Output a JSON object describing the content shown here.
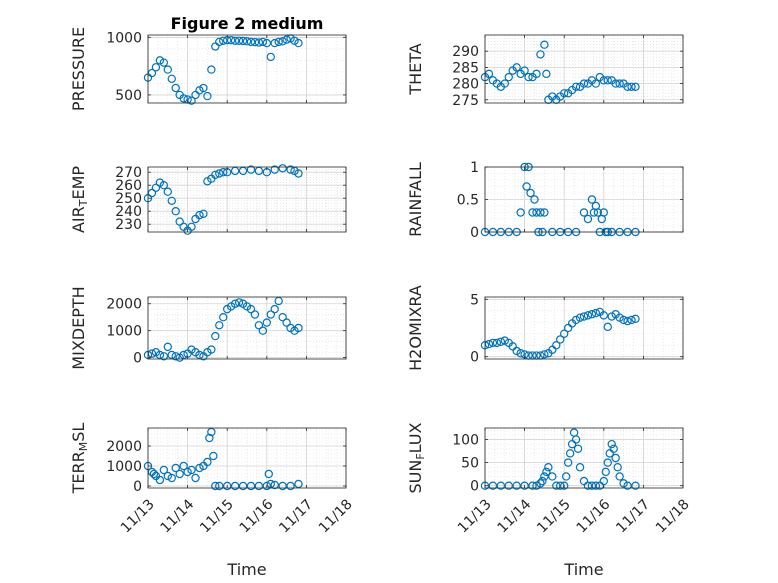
{
  "figure": {
    "title": "Figure 2 medium",
    "xlabel_left": "Time",
    "xlabel_right": "Time",
    "marker_color": "#0072BD",
    "x_ticks": [
      "11/13",
      "11/14",
      "11/15",
      "11/16",
      "11/17",
      "11/18"
    ]
  },
  "chart_data": [
    {
      "type": "scatter",
      "ylabel": "PRESSURE",
      "ylim": [
        430,
        1020
      ],
      "yticks": [
        500,
        1000
      ],
      "x": [
        0,
        0.1,
        0.2,
        0.3,
        0.4,
        0.5,
        0.6,
        0.7,
        0.8,
        0.9,
        1.0,
        1.1,
        1.2,
        1.3,
        1.4,
        1.5,
        1.6,
        1.7,
        1.8,
        1.9,
        2.0,
        2.1,
        2.2,
        2.3,
        2.4,
        2.5,
        2.6,
        2.7,
        2.8,
        2.9,
        3.0,
        3.1,
        3.2,
        3.3,
        3.4,
        3.5,
        3.6,
        3.7,
        3.8
      ],
      "y": [
        650,
        690,
        740,
        800,
        780,
        720,
        640,
        560,
        500,
        470,
        460,
        450,
        500,
        540,
        560,
        490,
        720,
        920,
        960,
        970,
        975,
        975,
        970,
        970,
        968,
        965,
        960,
        958,
        955,
        960,
        950,
        830,
        950,
        960,
        965,
        980,
        990,
        970,
        950
      ]
    },
    {
      "type": "scatter",
      "ylabel": "THETA",
      "ylim": [
        274,
        295
      ],
      "yticks": [
        275,
        280,
        285,
        290
      ],
      "x": [
        0,
        0.1,
        0.2,
        0.3,
        0.4,
        0.5,
        0.6,
        0.7,
        0.8,
        0.9,
        1.0,
        1.1,
        1.2,
        1.3,
        1.4,
        1.5,
        1.55,
        1.6,
        1.7,
        1.8,
        1.9,
        2.0,
        2.1,
        2.2,
        2.3,
        2.4,
        2.5,
        2.6,
        2.7,
        2.8,
        2.9,
        3.0,
        3.1,
        3.2,
        3.3,
        3.4,
        3.5,
        3.6,
        3.7,
        3.8
      ],
      "y": [
        282,
        283,
        281,
        280,
        279,
        280,
        282,
        284,
        285,
        283,
        284,
        282,
        282,
        283,
        289,
        292,
        283,
        275,
        276,
        275,
        276,
        277,
        277,
        278,
        279,
        279,
        280,
        280,
        281,
        280,
        282,
        281,
        281,
        281,
        280,
        280,
        280,
        279,
        279,
        279
      ]
    },
    {
      "type": "scatter",
      "ylabel": "AIR_TEMP",
      "ylim": [
        224,
        274
      ],
      "yticks": [
        230,
        240,
        250,
        260,
        270
      ],
      "x": [
        0,
        0.1,
        0.2,
        0.3,
        0.4,
        0.5,
        0.6,
        0.7,
        0.8,
        0.9,
        1.0,
        1.1,
        1.2,
        1.3,
        1.4,
        1.5,
        1.6,
        1.7,
        1.8,
        1.9,
        2.0,
        2.2,
        2.4,
        2.6,
        2.8,
        3.0,
        3.2,
        3.4,
        3.6,
        3.7,
        3.8
      ],
      "y": [
        250,
        254,
        258,
        262,
        260,
        255,
        248,
        240,
        232,
        228,
        225,
        228,
        234,
        237,
        238,
        263,
        265,
        268,
        269,
        270,
        270,
        271,
        271,
        272,
        271,
        270,
        272,
        273,
        272,
        271,
        269
      ]
    },
    {
      "type": "scatter",
      "ylabel": "RAINFALL",
      "ylim": [
        0,
        1
      ],
      "yticks": [
        0,
        0.5,
        1
      ],
      "x": [
        0,
        0.2,
        0.4,
        0.6,
        0.8,
        0.9,
        1.0,
        1.05,
        1.1,
        1.15,
        1.2,
        1.25,
        1.3,
        1.35,
        1.4,
        1.45,
        1.5,
        1.7,
        1.9,
        2.1,
        2.3,
        2.5,
        2.6,
        2.7,
        2.75,
        2.8,
        2.85,
        2.9,
        2.95,
        3.0,
        3.05,
        3.1,
        3.2,
        3.4,
        3.6,
        3.8
      ],
      "y": [
        0,
        0,
        0,
        0,
        0,
        0.3,
        1,
        0.7,
        1,
        0.6,
        0.3,
        0.5,
        0.3,
        0,
        0.3,
        0,
        0.3,
        0,
        0,
        0,
        0,
        0.3,
        0.2,
        0.5,
        0.3,
        0.4,
        0.3,
        0,
        0.2,
        0.3,
        0,
        0,
        0,
        0,
        0,
        0
      ]
    },
    {
      "type": "scatter",
      "ylabel": "MIXDEPTH",
      "ylim": [
        -50,
        2250
      ],
      "yticks": [
        0,
        1000,
        2000
      ],
      "x": [
        0,
        0.1,
        0.2,
        0.3,
        0.4,
        0.5,
        0.6,
        0.7,
        0.8,
        0.9,
        1.0,
        1.1,
        1.2,
        1.3,
        1.4,
        1.5,
        1.6,
        1.7,
        1.8,
        1.9,
        2.0,
        2.1,
        2.2,
        2.3,
        2.4,
        2.5,
        2.6,
        2.7,
        2.8,
        2.9,
        3.0,
        3.1,
        3.2,
        3.3,
        3.4,
        3.5,
        3.6,
        3.7,
        3.8
      ],
      "y": [
        100,
        150,
        200,
        100,
        50,
        400,
        100,
        50,
        0,
        100,
        150,
        300,
        200,
        100,
        50,
        200,
        300,
        800,
        1200,
        1500,
        1800,
        1900,
        2000,
        2050,
        2000,
        1900,
        1800,
        1600,
        1200,
        1000,
        1300,
        1600,
        1800,
        2100,
        1500,
        1300,
        1100,
        1000,
        1100
      ]
    },
    {
      "type": "scatter",
      "ylabel": "H2OMIXRA",
      "ylim": [
        -0.2,
        5.2
      ],
      "yticks": [
        0,
        5
      ],
      "x": [
        0,
        0.1,
        0.2,
        0.3,
        0.4,
        0.5,
        0.6,
        0.7,
        0.8,
        0.9,
        1.0,
        1.1,
        1.2,
        1.3,
        1.4,
        1.5,
        1.6,
        1.7,
        1.8,
        1.9,
        2.0,
        2.1,
        2.2,
        2.3,
        2.4,
        2.5,
        2.6,
        2.7,
        2.8,
        2.9,
        3.0,
        3.1,
        3.2,
        3.3,
        3.4,
        3.5,
        3.6,
        3.7,
        3.8
      ],
      "y": [
        1,
        1.1,
        1.2,
        1.2,
        1.3,
        1.4,
        1.2,
        0.9,
        0.5,
        0.3,
        0.2,
        0.1,
        0.1,
        0.1,
        0.1,
        0.2,
        0.3,
        0.6,
        1.0,
        1.5,
        2.0,
        2.5,
        2.9,
        3.2,
        3.4,
        3.5,
        3.6,
        3.7,
        3.8,
        3.9,
        3.6,
        2.6,
        3.5,
        3.7,
        3.4,
        3.2,
        3.1,
        3.2,
        3.3
      ]
    },
    {
      "type": "scatter",
      "ylabel": "TERR_MSL",
      "ylim": [
        -100,
        2900
      ],
      "yticks": [
        0,
        1000,
        2000
      ],
      "x": [
        0,
        0.1,
        0.15,
        0.2,
        0.3,
        0.4,
        0.5,
        0.6,
        0.7,
        0.8,
        0.9,
        1.0,
        1.1,
        1.2,
        1.3,
        1.4,
        1.5,
        1.55,
        1.6,
        1.65,
        1.7,
        1.8,
        2.0,
        2.2,
        2.4,
        2.6,
        2.8,
        3.0,
        3.05,
        3.1,
        3.2,
        3.4,
        3.6,
        3.8
      ],
      "y": [
        1000,
        700,
        600,
        500,
        300,
        800,
        500,
        400,
        900,
        600,
        1000,
        700,
        800,
        400,
        900,
        1000,
        1200,
        2400,
        2700,
        1500,
        0,
        0,
        0,
        0,
        0,
        0,
        0,
        0,
        600,
        100,
        50,
        0,
        0,
        100
      ]
    },
    {
      "type": "scatter",
      "ylabel": "SUN_FLUX",
      "ylim": [
        -5,
        125
      ],
      "yticks": [
        0,
        50,
        100
      ],
      "x": [
        0,
        0.2,
        0.4,
        0.6,
        0.8,
        1.0,
        1.2,
        1.3,
        1.4,
        1.45,
        1.5,
        1.55,
        1.6,
        1.7,
        1.8,
        1.9,
        2.0,
        2.05,
        2.1,
        2.15,
        2.2,
        2.25,
        2.3,
        2.35,
        2.4,
        2.5,
        2.6,
        2.7,
        2.8,
        2.9,
        3.0,
        3.05,
        3.1,
        3.15,
        3.2,
        3.25,
        3.3,
        3.35,
        3.4,
        3.5,
        3.6,
        3.8
      ],
      "y": [
        0,
        0,
        0,
        0,
        0,
        0,
        0,
        0,
        5,
        10,
        20,
        30,
        40,
        20,
        0,
        0,
        0,
        20,
        50,
        70,
        90,
        115,
        100,
        80,
        40,
        10,
        0,
        0,
        0,
        0,
        10,
        30,
        50,
        70,
        90,
        80,
        60,
        40,
        20,
        5,
        0,
        0
      ]
    }
  ]
}
